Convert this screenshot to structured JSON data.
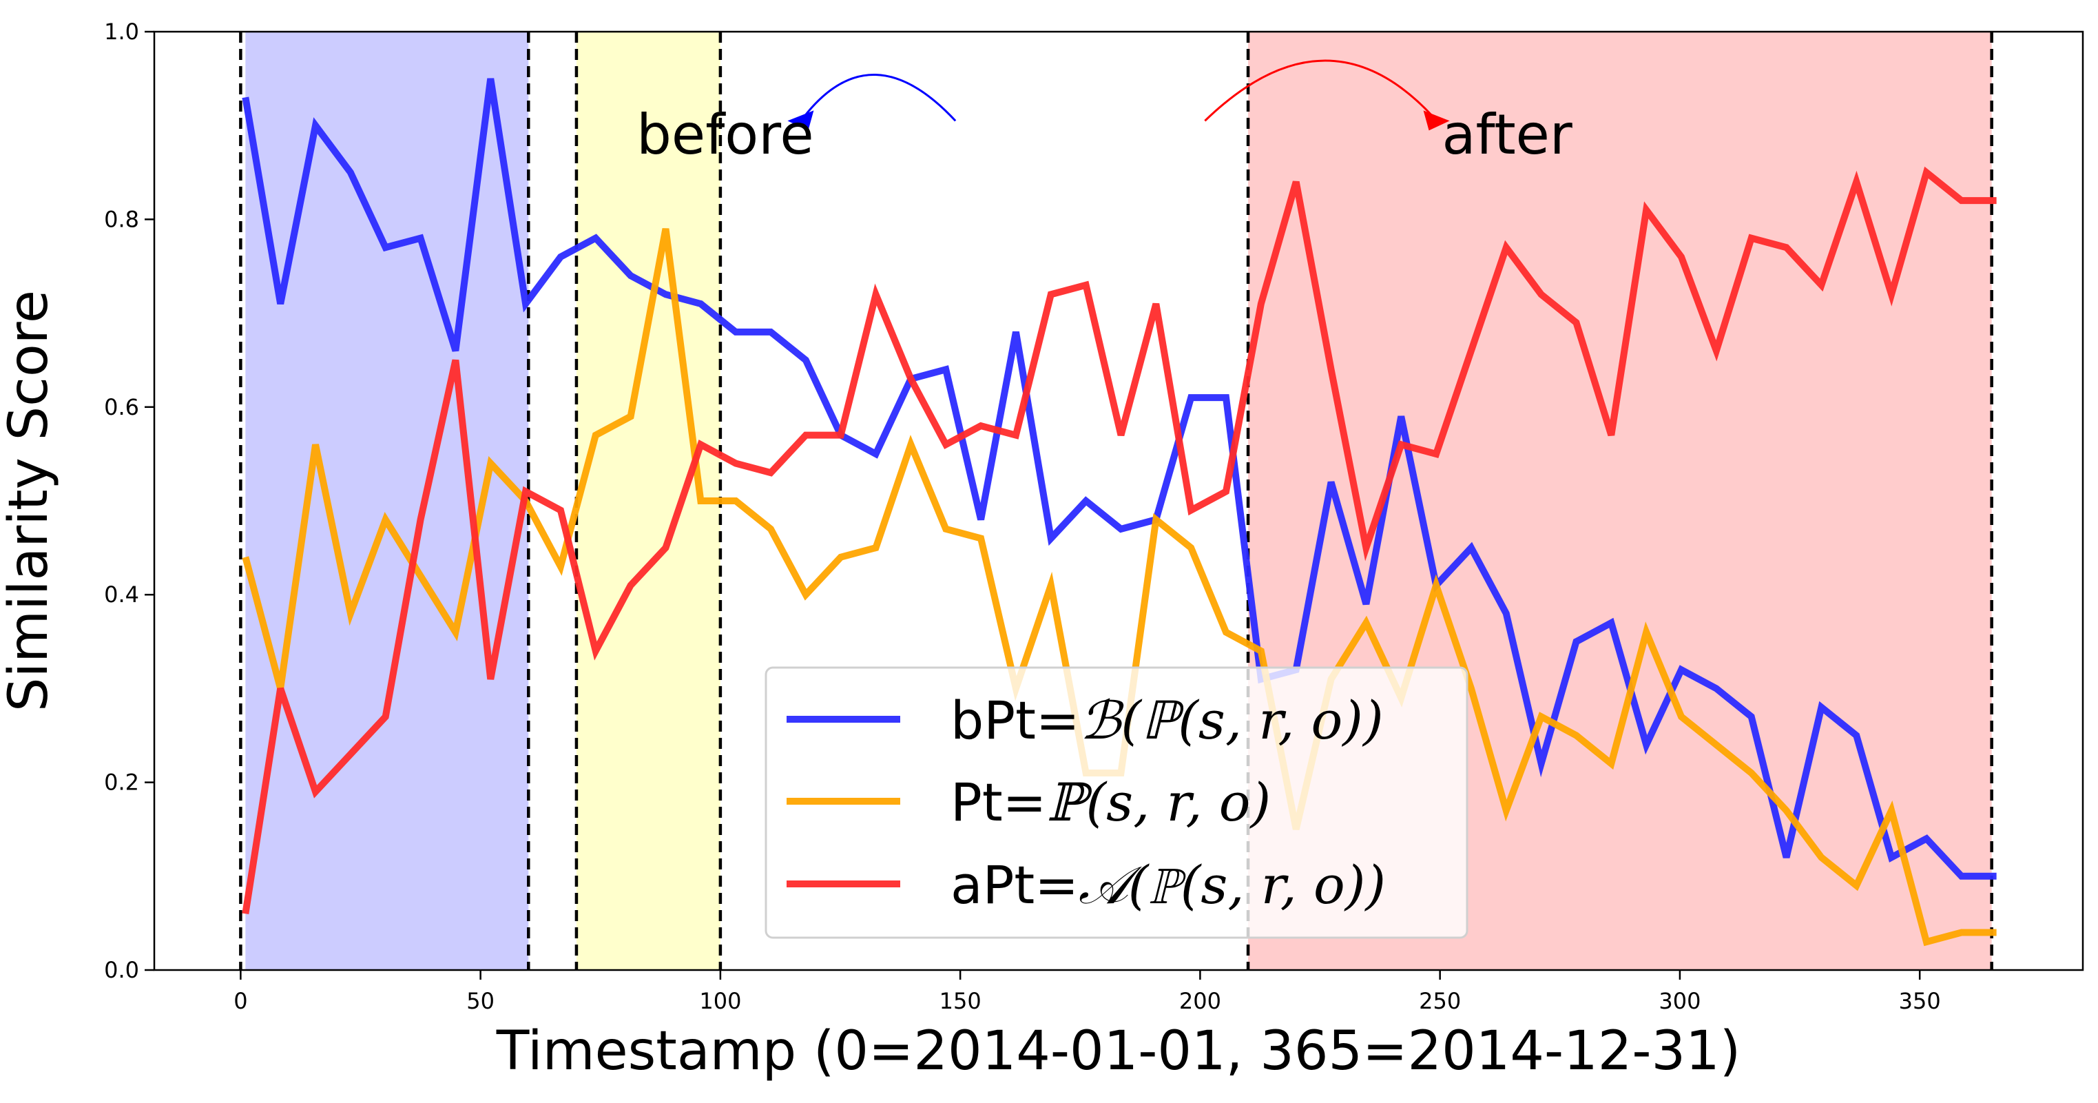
{
  "chart_data": {
    "type": "line",
    "xlabel": "Timestamp (0=2014-01-01, 365=2014-12-31)",
    "ylabel": "Similarity Score",
    "xlim": [
      -18,
      384
    ],
    "ylim": [
      0.0,
      1.0
    ],
    "xticks": [
      0,
      50,
      100,
      150,
      200,
      250,
      300,
      350
    ],
    "yticks": [
      0.0,
      0.2,
      0.4,
      0.6,
      0.8,
      1.0
    ],
    "xtick_labels": [
      "0",
      "50",
      "100",
      "150",
      "200",
      "250",
      "300",
      "350"
    ],
    "ytick_labels": [
      "0.0",
      "0.2",
      "0.4",
      "0.6",
      "0.8",
      "1.0"
    ],
    "grid": false,
    "legend_position": "bottom-center",
    "x": [
      1,
      8.3,
      15.6,
      22.9,
      30.2,
      37.5,
      44.8,
      52.1,
      59.4,
      66.7,
      74,
      81.3,
      88.6,
      95.9,
      103.2,
      110.5,
      117.8,
      125.1,
      132.4,
      139.7,
      147,
      154.3,
      161.6,
      168.9,
      176.2,
      183.5,
      190.8,
      198.1,
      205.4,
      212.7,
      220,
      227.3,
      234.6,
      241.9,
      249.2,
      256.5,
      263.8,
      271.1,
      278.4,
      285.7,
      293,
      300.3,
      307.6,
      314.9,
      322.2,
      329.5,
      336.8,
      344.1,
      351.4,
      358.7,
      366
    ],
    "series": [
      {
        "name": "bPt=ℬₜ(ℙₜ(s, r, o))",
        "legend_prefix": "bPt=",
        "legend_script": "ℬ",
        "legend_tail": "(ℙ",
        "legend_end": "(s, r, o))",
        "color": "#2b2bff",
        "values": [
          0.93,
          0.71,
          0.9,
          0.85,
          0.77,
          0.78,
          0.66,
          0.95,
          0.71,
          0.76,
          0.78,
          0.74,
          0.72,
          0.71,
          0.68,
          0.68,
          0.65,
          0.57,
          0.55,
          0.63,
          0.64,
          0.48,
          0.68,
          0.46,
          0.5,
          0.47,
          0.48,
          0.61,
          0.61,
          0.31,
          0.32,
          0.52,
          0.39,
          0.59,
          0.41,
          0.45,
          0.38,
          0.22,
          0.35,
          0.37,
          0.24,
          0.32,
          0.3,
          0.27,
          0.12,
          0.28,
          0.25,
          0.12,
          0.14,
          0.1,
          0.1
        ]
      },
      {
        "name": "Pt=ℙₜ(s, r, o)",
        "legend_prefix": "Pt=",
        "legend_script": "ℙ",
        "legend_tail": "",
        "legend_end": "(s, r, o)",
        "color": "#ffa500",
        "values": [
          0.44,
          0.3,
          0.56,
          0.38,
          0.48,
          0.42,
          0.36,
          0.54,
          0.5,
          0.43,
          0.57,
          0.59,
          0.79,
          0.5,
          0.5,
          0.47,
          0.4,
          0.44,
          0.45,
          0.56,
          0.47,
          0.46,
          0.3,
          0.41,
          0.21,
          0.21,
          0.48,
          0.45,
          0.36,
          0.34,
          0.15,
          0.31,
          0.37,
          0.29,
          0.41,
          0.3,
          0.17,
          0.27,
          0.25,
          0.22,
          0.36,
          0.27,
          0.24,
          0.21,
          0.17,
          0.12,
          0.09,
          0.17,
          0.03,
          0.04,
          0.04
        ]
      },
      {
        "name": "aPt=𝒜ₜ(ℙₜ(s, r, o))",
        "legend_prefix": "aPt=",
        "legend_script": "𝒜",
        "legend_tail": "(ℙ",
        "legend_end": "(s, r, o))",
        "color": "#ff2b2b",
        "values": [
          0.06,
          0.3,
          0.19,
          0.23,
          0.27,
          0.48,
          0.65,
          0.31,
          0.51,
          0.49,
          0.34,
          0.41,
          0.45,
          0.56,
          0.54,
          0.53,
          0.57,
          0.57,
          0.72,
          0.63,
          0.56,
          0.58,
          0.57,
          0.72,
          0.73,
          0.57,
          0.71,
          0.49,
          0.51,
          0.71,
          0.84,
          0.64,
          0.45,
          0.56,
          0.55,
          0.66,
          0.77,
          0.72,
          0.69,
          0.57,
          0.81,
          0.76,
          0.66,
          0.78,
          0.77,
          0.73,
          0.84,
          0.72,
          0.85,
          0.82,
          0.82
        ]
      }
    ],
    "shaded_regions": [
      {
        "x0": 1,
        "x1": 60,
        "color": "#ccccff"
      },
      {
        "x0": 70,
        "x1": 100,
        "color": "#ffffcc"
      },
      {
        "x0": 210,
        "x1": 365,
        "color": "#ffcccc"
      }
    ],
    "vlines": [
      0,
      60,
      70,
      100,
      210,
      365
    ],
    "annotations": [
      {
        "text": "before",
        "x": 101,
        "y": 0.87,
        "color": "#000000"
      },
      {
        "text": "after",
        "x": 264,
        "y": 0.87,
        "color": "#000000"
      }
    ],
    "arrows": [
      {
        "from": [
          149,
          0.905
        ],
        "to": [
          114,
          0.905
        ],
        "bulge": 0.048,
        "color": "#0000ff"
      },
      {
        "from": [
          201,
          0.905
        ],
        "to": [
          252,
          0.905
        ],
        "bulge": 0.063,
        "color": "#ff0000"
      }
    ]
  }
}
